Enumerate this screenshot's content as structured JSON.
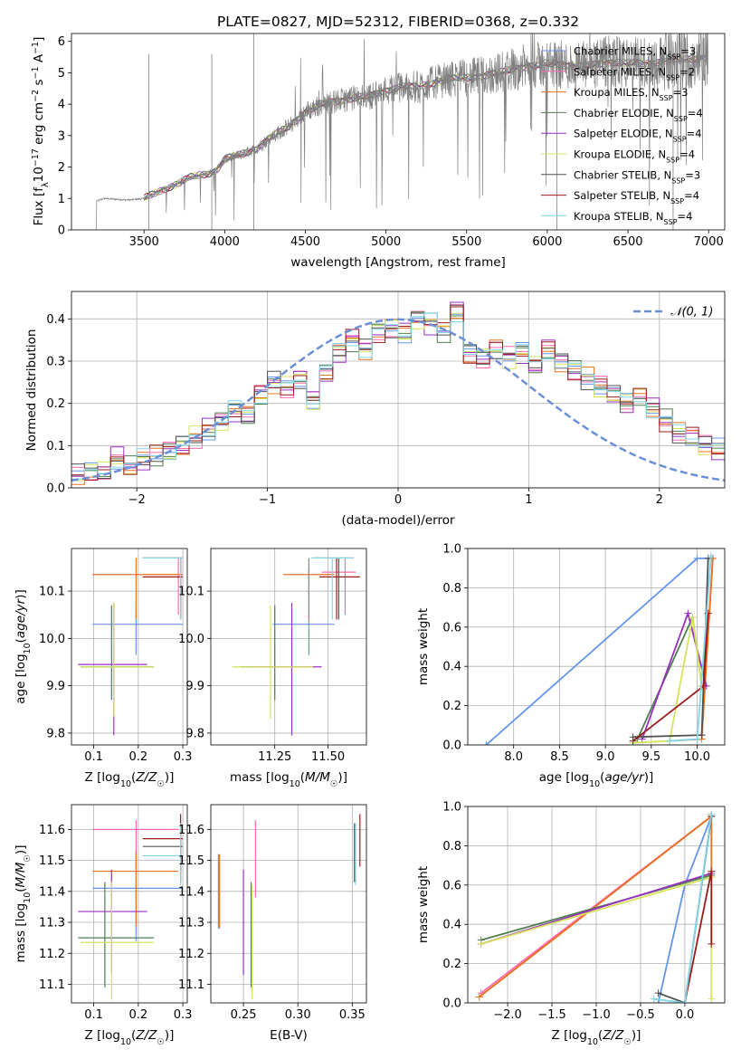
{
  "colors": {
    "Chabrier MILES": "#6495ed",
    "Salpeter MILES": "#ff69b4",
    "Kroupa MILES": "#e8711c",
    "Chabrier ELODIE": "#4e7f4e",
    "Salpeter ELODIE": "#9b2fc0",
    "Kroupa ELODIE": "#d6e35a",
    "Chabrier STELIB": "#505050",
    "Salpeter STELIB": "#9b1b1b",
    "Kroupa STELIB": "#7fd6e8",
    "spectrum": "#808080",
    "normal": "#6a8fd6",
    "grid": "#b0b0b0"
  },
  "chart_data": [
    {
      "type": "line",
      "title": "PLATE=0827, MJD=52312, FIBERID=0368, z=0.332",
      "xlabel": "wavelength [Angstrom, rest frame]",
      "ylabel": "Flux [f_λ10^-17 erg cm^-2 s^-1 A^-1]",
      "xlim": [
        3050,
        7100
      ],
      "ylim": [
        0,
        6.25
      ],
      "xticks": [
        3500,
        4000,
        4500,
        5000,
        5500,
        6000,
        6500,
        7000
      ],
      "yticks": [
        0,
        1,
        2,
        3,
        4,
        5,
        6
      ],
      "legend": [
        "Chabrier MILES, N_SSP=3",
        "Salpeter MILES, N_SSP=2",
        "Kroupa MILES, N_SSP=3",
        "Chabrier ELODIE, N_SSP=4",
        "Salpeter ELODIE, N_SSP=4",
        "Kroupa ELODIE, N_SSP=4",
        "Chabrier STELIB, N_SSP=3",
        "Salpeter STELIB, N_SSP=4",
        "Kroupa STELIB, N_SSP=4"
      ],
      "legend_position": "upper right",
      "spectrum_continuum": {
        "x": [
          3200,
          3250,
          3400,
          3500,
          3600,
          3700,
          3800,
          3900,
          3950,
          4000,
          4100,
          4200,
          4300,
          4400,
          4500,
          4600,
          4700,
          4800,
          4900,
          5000,
          5100,
          5200,
          5300,
          5400,
          5500,
          5600,
          5700,
          5800,
          5900,
          6000,
          6100,
          6200,
          6300,
          6400,
          6500,
          6600,
          6700,
          6800,
          6900,
          7000
        ],
        "y": [
          0.9,
          1.0,
          0.95,
          1.0,
          1.25,
          1.45,
          1.7,
          1.8,
          1.9,
          2.25,
          2.4,
          2.6,
          3.0,
          3.3,
          3.75,
          4.0,
          4.1,
          4.2,
          4.25,
          4.45,
          4.55,
          4.55,
          4.7,
          4.8,
          4.85,
          4.9,
          5.0,
          5.15,
          5.2,
          5.3,
          5.25,
          5.2,
          5.25,
          5.35,
          5.3,
          5.3,
          5.35,
          5.4,
          5.45,
          5.5
        ]
      }
    },
    {
      "type": "histogram",
      "xlabel": "(data-model)/error",
      "ylabel": "Normed distribution",
      "xlim": [
        -2.5,
        2.5
      ],
      "ylim": [
        0,
        0.465
      ],
      "xticks": [
        -2,
        -1,
        0,
        1,
        2
      ],
      "yticks": [
        0.0,
        0.1,
        0.2,
        0.3,
        0.4
      ],
      "legend": [
        "N(0,1)"
      ],
      "legend_position": "upper right",
      "bin_edges_start": -2.5,
      "bin_width": 0.1,
      "values": [
        0.03,
        0.035,
        0.04,
        0.07,
        0.05,
        0.065,
        0.075,
        0.085,
        0.1,
        0.12,
        0.14,
        0.16,
        0.18,
        0.17,
        0.22,
        0.25,
        0.24,
        0.26,
        0.21,
        0.27,
        0.32,
        0.35,
        0.33,
        0.37,
        0.38,
        0.37,
        0.4,
        0.39,
        0.37,
        0.42,
        0.32,
        0.31,
        0.33,
        0.31,
        0.32,
        0.29,
        0.33,
        0.3,
        0.28,
        0.26,
        0.24,
        0.22,
        0.2,
        0.22,
        0.19,
        0.16,
        0.13,
        0.12,
        0.1,
        0.09,
        0.08,
        0.07,
        0.06,
        0.055,
        0.05,
        0.04,
        0.045,
        0.035,
        0.04,
        0.03
      ]
    },
    {
      "type": "scatter",
      "xlabel": "Z [log10(Z/Z☉)]",
      "ylabel": "age [log10(age/yr)]",
      "xlim": [
        0.05,
        0.31
      ],
      "ylim": [
        9.775,
        10.19
      ],
      "xticks": [
        0.1,
        0.2,
        0.3
      ],
      "yticks": [
        9.8,
        9.9,
        10.0,
        10.1
      ],
      "points": [
        {
          "model": "Chabrier MILES",
          "x": 0.195,
          "y": 10.03,
          "xerr": [
            0.097,
            0.3
          ],
          "yerr": [
            9.965,
            10.075
          ]
        },
        {
          "model": "Salpeter MILES",
          "x": 0.29,
          "y": 10.17,
          "xerr": [
            0.21,
            0.3
          ],
          "yerr": [
            10.05,
            10.17
          ]
        },
        {
          "model": "Kroupa MILES",
          "x": 0.195,
          "y": 10.135,
          "xerr": [
            0.097,
            0.3
          ],
          "yerr": [
            10.04,
            10.17
          ]
        },
        {
          "model": "Chabrier ELODIE",
          "x": 0.14,
          "y": 9.94,
          "xerr": [
            0.07,
            0.235
          ],
          "yerr": [
            9.87,
            10.07
          ]
        },
        {
          "model": "Salpeter ELODIE",
          "x": 0.145,
          "y": 9.945,
          "xerr": [
            0.065,
            0.22
          ],
          "yerr": [
            9.795,
            10.075
          ]
        },
        {
          "model": "Kroupa ELODIE",
          "x": 0.145,
          "y": 9.94,
          "xerr": [
            0.07,
            0.235
          ],
          "yerr": [
            9.835,
            10.075
          ]
        },
        {
          "model": "Chabrier STELIB",
          "x": 0.295,
          "y": 10.17,
          "xerr": [
            0.21,
            0.3
          ],
          "yerr": [
            10.04,
            10.17
          ]
        },
        {
          "model": "Salpeter STELIB",
          "x": 0.295,
          "y": 10.13,
          "xerr": [
            0.21,
            0.3
          ],
          "yerr": [
            10.04,
            10.17
          ]
        },
        {
          "model": "Kroupa STELIB",
          "x": 0.295,
          "y": 10.17,
          "xerr": [
            0.21,
            0.3
          ],
          "yerr": [
            10.04,
            10.17
          ]
        }
      ]
    },
    {
      "type": "scatter",
      "xlabel": "mass [log10(M/M☉)]",
      "ylabel": "",
      "xlim": [
        10.95,
        11.68
      ],
      "ylim": [
        9.775,
        10.19
      ],
      "xticks": [
        11.25,
        11.5
      ],
      "yticks": [
        9.8,
        9.9,
        10.0,
        10.1
      ],
      "points": [
        {
          "model": "Chabrier MILES",
          "x": 11.41,
          "y": 10.03,
          "xerr": [
            11.24,
            11.53
          ],
          "yerr": [
            9.965,
            10.15
          ]
        },
        {
          "model": "Salpeter MILES",
          "x": 11.58,
          "y": 10.14,
          "xerr": [
            11.47,
            11.63
          ],
          "yerr": [
            10.05,
            10.17
          ]
        },
        {
          "model": "Kroupa MILES",
          "x": 11.41,
          "y": 10.135,
          "xerr": [
            11.29,
            11.53
          ],
          "yerr": [
            10.04,
            10.17
          ]
        },
        {
          "model": "Chabrier ELODIE",
          "x": 11.25,
          "y": 9.94,
          "xerr": [
            11.09,
            11.43
          ],
          "yerr": [
            9.87,
            10.07
          ]
        },
        {
          "model": "Salpeter ELODIE",
          "x": 11.33,
          "y": 9.94,
          "xerr": [
            11.14,
            11.47
          ],
          "yerr": [
            9.795,
            10.075
          ]
        },
        {
          "model": "Kroupa ELODIE",
          "x": 11.23,
          "y": 9.94,
          "xerr": [
            11.05,
            11.43
          ],
          "yerr": [
            9.83,
            10.07
          ]
        },
        {
          "model": "Chabrier STELIB",
          "x": 11.55,
          "y": 10.17,
          "xerr": [
            11.43,
            11.62
          ],
          "yerr": [
            10.04,
            10.17
          ]
        },
        {
          "model": "Salpeter STELIB",
          "x": 11.54,
          "y": 10.13,
          "xerr": [
            11.46,
            11.65
          ],
          "yerr": [
            10.04,
            10.17
          ]
        },
        {
          "model": "Kroupa STELIB",
          "x": 11.52,
          "y": 10.17,
          "xerr": [
            11.42,
            11.62
          ],
          "yerr": [
            10.04,
            10.17
          ]
        }
      ]
    },
    {
      "type": "line",
      "xlabel": "age [log10(age/yr)]",
      "ylabel": "mass weight",
      "xlim": [
        7.5,
        10.3
      ],
      "ylim": [
        0,
        1
      ],
      "xticks": [
        8.0,
        8.5,
        9.0,
        9.5,
        10.0
      ],
      "yticks": [
        0.0,
        0.2,
        0.4,
        0.6,
        0.8,
        1.0
      ],
      "series": [
        {
          "model": "Chabrier MILES",
          "x": [
            7.7,
            10.0,
            10.15
          ],
          "y": [
            0.0,
            0.95,
            0.95
          ]
        },
        {
          "model": "Salpeter MILES",
          "x": [
            10.05,
            10.17
          ],
          "y": [
            0.05,
            0.95
          ]
        },
        {
          "model": "Kroupa MILES",
          "x": [
            9.7,
            10.05,
            10.17
          ],
          "y": [
            0.02,
            0.03,
            0.95
          ]
        },
        {
          "model": "Chabrier ELODIE",
          "x": [
            9.35,
            9.95,
            10.05
          ],
          "y": [
            0.03,
            0.65,
            0.3
          ]
        },
        {
          "model": "Salpeter ELODIE",
          "x": [
            9.4,
            9.9,
            10.1
          ],
          "y": [
            0.03,
            0.67,
            0.3
          ]
        },
        {
          "model": "Kroupa ELODIE",
          "x": [
            9.3,
            9.7,
            9.95,
            10.05
          ],
          "y": [
            0.01,
            0.02,
            0.65,
            0.3
          ]
        },
        {
          "model": "Chabrier STELIB",
          "x": [
            9.3,
            10.05,
            10.12
          ],
          "y": [
            0.04,
            0.05,
            0.95
          ]
        },
        {
          "model": "Salpeter STELIB",
          "x": [
            9.3,
            10.07,
            10.12
          ],
          "y": [
            0.02,
            0.3,
            0.67
          ]
        },
        {
          "model": "Kroupa STELIB",
          "x": [
            9.7,
            10.0,
            10.15
          ],
          "y": [
            0.02,
            0.03,
            0.96
          ]
        }
      ]
    },
    {
      "type": "scatter",
      "xlabel": "Z [log10(Z/Z☉)]",
      "ylabel": "mass [log10(M/M☉)]",
      "xlim": [
        0.05,
        0.31
      ],
      "ylim": [
        11.04,
        11.68
      ],
      "xticks": [
        0.1,
        0.2,
        0.3
      ],
      "yticks": [
        11.1,
        11.2,
        11.3,
        11.4,
        11.5,
        11.6
      ],
      "points": [
        {
          "model": "Chabrier MILES",
          "x": 0.195,
          "y": 11.41,
          "xerr": [
            0.097,
            0.3
          ],
          "yerr": [
            11.24,
            11.53
          ]
        },
        {
          "model": "Salpeter MILES",
          "x": 0.195,
          "y": 11.6,
          "xerr": [
            0.097,
            0.29
          ],
          "yerr": [
            11.47,
            11.63
          ]
        },
        {
          "model": "Kroupa MILES",
          "x": 0.195,
          "y": 11.465,
          "xerr": [
            0.097,
            0.29
          ],
          "yerr": [
            11.29,
            11.53
          ]
        },
        {
          "model": "Chabrier ELODIE",
          "x": 0.125,
          "y": 11.25,
          "xerr": [
            0.065,
            0.235
          ],
          "yerr": [
            11.09,
            11.43
          ]
        },
        {
          "model": "Salpeter ELODIE",
          "x": 0.14,
          "y": 11.335,
          "xerr": [
            0.065,
            0.22
          ],
          "yerr": [
            11.14,
            11.47
          ]
        },
        {
          "model": "Kroupa ELODIE",
          "x": 0.14,
          "y": 11.235,
          "xerr": [
            0.07,
            0.235
          ],
          "yerr": [
            11.05,
            11.43
          ]
        },
        {
          "model": "Chabrier STELIB",
          "x": 0.295,
          "y": 11.545,
          "xerr": [
            0.21,
            0.3
          ],
          "yerr": [
            11.43,
            11.62
          ]
        },
        {
          "model": "Salpeter STELIB",
          "x": 0.295,
          "y": 11.57,
          "xerr": [
            0.21,
            0.3
          ],
          "yerr": [
            11.46,
            11.65
          ]
        },
        {
          "model": "Kroupa STELIB",
          "x": 0.295,
          "y": 11.515,
          "xerr": [
            0.21,
            0.3
          ],
          "yerr": [
            11.42,
            11.62
          ]
        }
      ]
    },
    {
      "type": "scatter",
      "xlabel": "E(B-V)",
      "ylabel": "",
      "xlim": [
        0.22,
        0.363
      ],
      "ylim": [
        11.04,
        11.68
      ],
      "xticks": [
        0.25,
        0.3,
        0.35
      ],
      "yticks": [
        11.1,
        11.2,
        11.3,
        11.4,
        11.5,
        11.6
      ],
      "points": [
        {
          "model": "Chabrier MILES",
          "x": 0.227,
          "y": 11.4,
          "yerr": [
            11.28,
            11.52
          ]
        },
        {
          "model": "Salpeter MILES",
          "x": 0.261,
          "y": 11.5,
          "yerr": [
            11.38,
            11.63
          ]
        },
        {
          "model": "Kroupa MILES",
          "x": 0.228,
          "y": 11.4,
          "yerr": [
            11.28,
            11.52
          ]
        },
        {
          "model": "Chabrier ELODIE",
          "x": 0.257,
          "y": 11.23,
          "yerr": [
            11.09,
            11.43
          ]
        },
        {
          "model": "Salpeter ELODIE",
          "x": 0.25,
          "y": 11.33,
          "yerr": [
            11.13,
            11.47
          ]
        },
        {
          "model": "Kroupa ELODIE",
          "x": 0.258,
          "y": 11.22,
          "yerr": [
            11.05,
            11.42
          ]
        },
        {
          "model": "Chabrier STELIB",
          "x": 0.352,
          "y": 11.5,
          "yerr": [
            11.43,
            11.62
          ]
        },
        {
          "model": "Salpeter STELIB",
          "x": 0.357,
          "y": 11.57,
          "yerr": [
            11.48,
            11.65
          ]
        },
        {
          "model": "Kroupa STELIB",
          "x": 0.353,
          "y": 11.5,
          "yerr": [
            11.42,
            11.62
          ]
        }
      ]
    },
    {
      "type": "line",
      "xlabel": "Z [log10(Z/Z☉)]",
      "ylabel": "mass weight",
      "xlim": [
        -2.45,
        0.45
      ],
      "ylim": [
        0,
        1
      ],
      "xticks": [
        -2.0,
        -1.5,
        -1.0,
        -0.5,
        0.0
      ],
      "yticks": [
        0.0,
        0.2,
        0.4,
        0.6,
        0.8,
        1.0
      ],
      "series": [
        {
          "model": "Chabrier MILES",
          "x": [
            -0.3,
            0.0,
            0.3
          ],
          "y": [
            0.0,
            0.6,
            0.95
          ]
        },
        {
          "model": "Salpeter MILES",
          "x": [
            -2.3,
            0.3
          ],
          "y": [
            0.05,
            0.95
          ]
        },
        {
          "model": "Kroupa MILES",
          "x": [
            -2.32,
            0.3,
            0.3
          ],
          "y": [
            0.03,
            0.95,
            0.64
          ]
        },
        {
          "model": "Chabrier ELODIE",
          "x": [
            -2.3,
            0.3
          ],
          "y": [
            0.32,
            0.65
          ]
        },
        {
          "model": "Salpeter ELODIE",
          "x": [
            -2.3,
            0.3
          ],
          "y": [
            0.3,
            0.66
          ]
        },
        {
          "model": "Kroupa ELODIE",
          "x": [
            -2.3,
            0.3,
            0.3
          ],
          "y": [
            0.3,
            0.64,
            0.02
          ]
        },
        {
          "model": "Chabrier STELIB",
          "x": [
            -0.3,
            0.0,
            0.3
          ],
          "y": [
            0.05,
            0.0,
            0.95
          ]
        },
        {
          "model": "Salpeter STELIB",
          "x": [
            0.0,
            0.3,
            0.3
          ],
          "y": [
            0.0,
            0.67,
            0.3
          ]
        },
        {
          "model": "Kroupa STELIB",
          "x": [
            -0.35,
            0.0,
            0.3
          ],
          "y": [
            0.02,
            0.0,
            0.96
          ]
        }
      ]
    }
  ]
}
